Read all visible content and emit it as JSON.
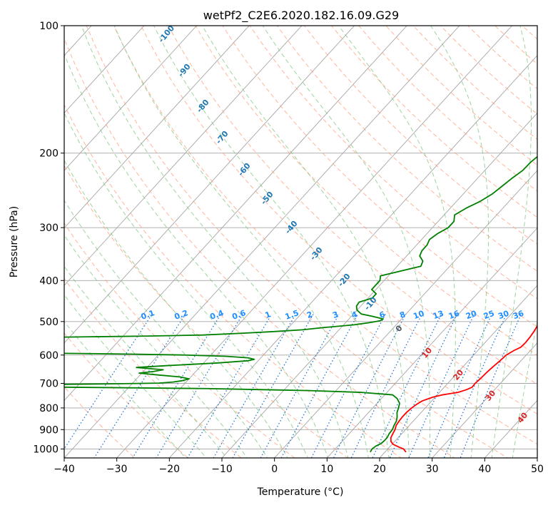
{
  "chart_data": {
    "type": "line",
    "title": "wetPf2_C2E6.2020.182.16.09.G29",
    "xlabel": "Temperature (°C)",
    "ylabel": "Pressure (hPa)",
    "xlim": [
      -40,
      50
    ],
    "ylim": [
      1050,
      100
    ],
    "y_scale": "log",
    "grid": true,
    "x_ticks": [
      -40,
      -30,
      -20,
      -10,
      0,
      10,
      20,
      30,
      40,
      50
    ],
    "y_ticks": [
      100,
      200,
      300,
      400,
      500,
      600,
      700,
      800,
      900,
      1000
    ],
    "x_tick_labels": [
      "−40",
      "−30",
      "−20",
      "−10",
      "0",
      "10",
      "20",
      "30",
      "40",
      "50"
    ],
    "y_tick_labels": [
      "100",
      "200",
      "300",
      "400",
      "500",
      "600",
      "700",
      "800",
      "900",
      "1000"
    ],
    "series": [
      {
        "color": "#ff0000",
        "points": [
          [
            1017,
            24.0
          ],
          [
            1000,
            23.0
          ],
          [
            990,
            21.8
          ],
          [
            975,
            20.2
          ],
          [
            960,
            19.3
          ],
          [
            940,
            18.6
          ],
          [
            920,
            18.3
          ],
          [
            900,
            18.0
          ],
          [
            880,
            17.5
          ],
          [
            860,
            17.3
          ],
          [
            840,
            17.2
          ],
          [
            820,
            17.2
          ],
          [
            800,
            17.4
          ],
          [
            785,
            17.7
          ],
          [
            770,
            18.2
          ],
          [
            755,
            19.5
          ],
          [
            745,
            21.0
          ],
          [
            735,
            23.5
          ],
          [
            725,
            24.6
          ],
          [
            715,
            25.3
          ],
          [
            700,
            25.2
          ],
          [
            680,
            25.4
          ],
          [
            660,
            25.5
          ],
          [
            640,
            25.7
          ],
          [
            620,
            26.0
          ],
          [
            600,
            26.2
          ],
          [
            585,
            26.9
          ],
          [
            575,
            27.6
          ],
          [
            560,
            27.7
          ],
          [
            545,
            27.6
          ],
          [
            530,
            27.4
          ],
          [
            510,
            27.0
          ],
          [
            480,
            26.2
          ],
          [
            450,
            25.2
          ],
          [
            420,
            24.0
          ],
          [
            390,
            22.7
          ],
          [
            365,
            21.2
          ],
          [
            350,
            20.6
          ],
          [
            330,
            19.6
          ],
          [
            300,
            18.2
          ],
          [
            280,
            17.3
          ],
          [
            260,
            16.3
          ],
          [
            240,
            15.2
          ],
          [
            220,
            14.3
          ],
          [
            200,
            13.6
          ],
          [
            180,
            13.3
          ],
          [
            165,
            13.3
          ],
          [
            150,
            13.1
          ],
          [
            140,
            13.0
          ],
          [
            130,
            13.4
          ],
          [
            120,
            13.6
          ],
          [
            110,
            13.5
          ],
          [
            105,
            13.6
          ],
          [
            100,
            14.3
          ]
        ]
      },
      {
        "color": "#008000",
        "points": [
          [
            1017,
            17.2
          ],
          [
            1000,
            17.0
          ],
          [
            985,
            17.2
          ],
          [
            970,
            17.8
          ],
          [
            955,
            17.9
          ],
          [
            940,
            17.9
          ],
          [
            920,
            17.6
          ],
          [
            900,
            17.5
          ],
          [
            880,
            17.1
          ],
          [
            860,
            16.8
          ],
          [
            840,
            16.2
          ],
          [
            820,
            15.4
          ],
          [
            800,
            14.9
          ],
          [
            780,
            14.3
          ],
          [
            760,
            13.0
          ],
          [
            745,
            11.5
          ],
          [
            735,
            5.0
          ],
          [
            728,
            -5.0
          ],
          [
            724,
            -15.0
          ],
          [
            720,
            -25.0
          ],
          [
            718,
            -35.0
          ],
          [
            716,
            -45.0
          ],
          [
            714,
            -55.0
          ],
          [
            712,
            -65.0
          ],
          [
            706,
            -65.0
          ],
          [
            704,
            -55.0
          ],
          [
            702,
            -45.0
          ],
          [
            699,
            -35.0
          ],
          [
            695,
            -32.5
          ],
          [
            690,
            -31.0
          ],
          [
            683,
            -30.0
          ],
          [
            676,
            -32.0
          ],
          [
            668,
            -37.0
          ],
          [
            662,
            -40.5
          ],
          [
            656,
            -38.0
          ],
          [
            650,
            -36.5
          ],
          [
            642,
            -42.0
          ],
          [
            636,
            -37.0
          ],
          [
            632,
            -33.0
          ],
          [
            626,
            -27.0
          ],
          [
            619,
            -22.0
          ],
          [
            614,
            -21.0
          ],
          [
            609,
            -22.5
          ],
          [
            604,
            -27.0
          ],
          [
            600,
            -35.0
          ],
          [
            597,
            -45.0
          ],
          [
            595,
            -55.0
          ],
          [
            593,
            -65.0
          ],
          [
            545,
            -65.0
          ],
          [
            543,
            -55.0
          ],
          [
            541,
            -45.0
          ],
          [
            538,
            -35.0
          ],
          [
            533,
            -28.0
          ],
          [
            528,
            -22.0
          ],
          [
            523,
            -17.0
          ],
          [
            517,
            -13.5
          ],
          [
            509,
            -8.0
          ],
          [
            503,
            -5.5
          ],
          [
            498,
            -3.8
          ],
          [
            493,
            -3.5
          ],
          [
            486,
            -6.0
          ],
          [
            480,
            -8.5
          ],
          [
            470,
            -10.0
          ],
          [
            460,
            -10.8
          ],
          [
            450,
            -11.0
          ],
          [
            440,
            -9.2
          ],
          [
            430,
            -9.2
          ],
          [
            420,
            -10.8
          ],
          [
            410,
            -10.8
          ],
          [
            400,
            -10.8
          ],
          [
            390,
            -11.5
          ],
          [
            380,
            -8.5
          ],
          [
            370,
            -5.5
          ],
          [
            360,
            -6.0
          ],
          [
            350,
            -7.5
          ],
          [
            340,
            -8.0
          ],
          [
            330,
            -8.0
          ],
          [
            320,
            -8.5
          ],
          [
            310,
            -8.0
          ],
          [
            300,
            -7.0
          ],
          [
            290,
            -7.0
          ],
          [
            280,
            -8.0
          ],
          [
            270,
            -7.0
          ],
          [
            260,
            -5.5
          ],
          [
            250,
            -4.5
          ],
          [
            240,
            -4.0
          ],
          [
            230,
            -3.5
          ],
          [
            220,
            -2.8
          ],
          [
            210,
            -2.7
          ],
          [
            200,
            -2.2
          ],
          [
            190,
            -1.8
          ],
          [
            180,
            -0.8
          ],
          [
            170,
            0.0
          ],
          [
            160,
            1.2
          ],
          [
            150,
            2.8
          ],
          [
            140,
            4.0
          ],
          [
            130,
            6.0
          ],
          [
            120,
            8.0
          ],
          [
            110,
            11.0
          ],
          [
            100,
            13.0
          ]
        ]
      }
    ],
    "dry_adiabat_labels": [
      "-100",
      "-90",
      "-80",
      "-70",
      "-60",
      "-50",
      "-40",
      "-30",
      "-20",
      "-10",
      "0",
      "10",
      "20",
      "30",
      "40"
    ],
    "mixing_ratio_labels": [
      "0.1",
      "0.2",
      "0.4",
      "0.6",
      "1",
      "1.5",
      "2",
      "3",
      "4",
      "6",
      "8",
      "10",
      "13",
      "16",
      "20",
      "25",
      "30",
      "36"
    ],
    "colors": {
      "temperature": "#ff0000",
      "dewpoint": "#008000",
      "dry_adiabat": "#ff9c7a",
      "moist_adiabat": "#7fc47f",
      "mixing_ratio": "#1f77d4",
      "isotherm": "#a6a6a6",
      "label_cold": "#1f77b4",
      "label_warm": "#d62728",
      "label_mixing": "#1f8fff"
    }
  }
}
